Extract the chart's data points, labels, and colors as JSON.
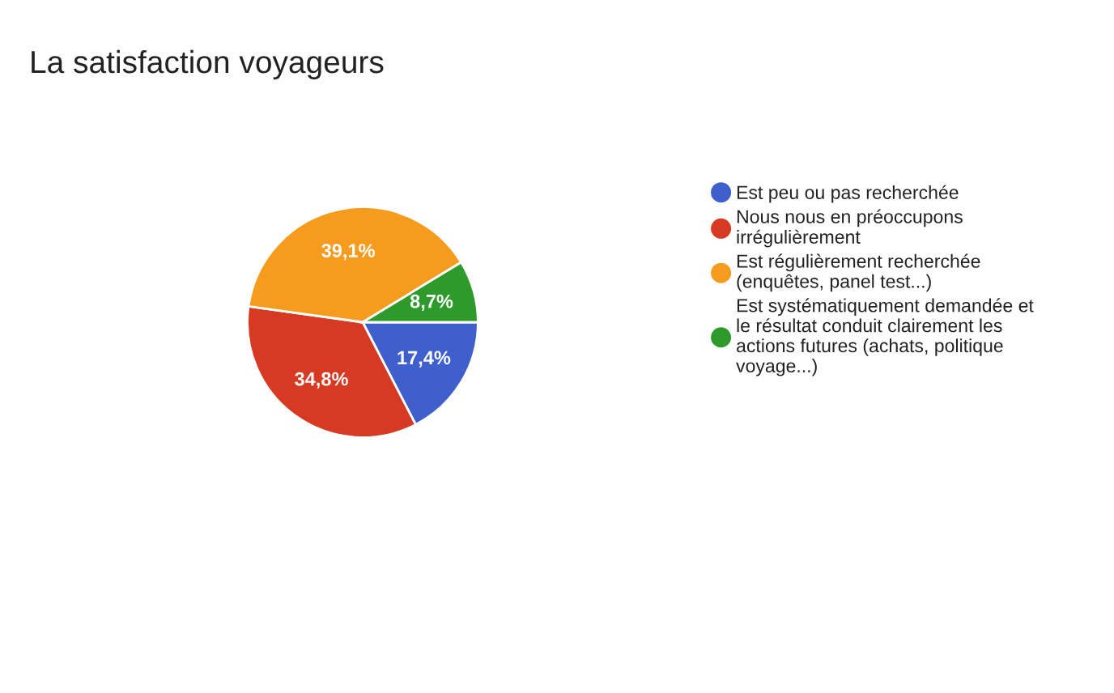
{
  "chart_data": {
    "type": "pie",
    "title": "La satisfaction voyageurs",
    "categories": [
      "Est peu ou pas recherchée",
      "Nous nous en préoccupons irrégulièrement",
      "Est régulièrement recherchée (enquêtes, panel test...)",
      "Est systématiquement demandée et le résultat conduit clairement les actions futures (achats, politique voyage...)"
    ],
    "values": [
      17.4,
      34.8,
      39.1,
      8.7
    ],
    "value_labels": [
      "17,4%",
      "34,8%",
      "39,1%",
      "8,7%"
    ],
    "colors": [
      "#3f5fcc",
      "#d63a22",
      "#f59c1f",
      "#2e9a2c"
    ],
    "legend": "right"
  }
}
